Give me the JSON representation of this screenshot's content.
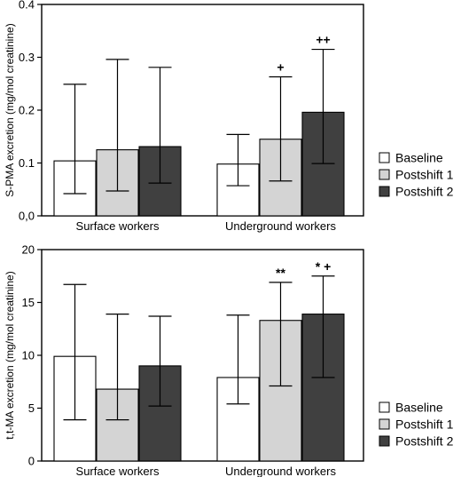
{
  "chart_data": [
    {
      "type": "bar",
      "ylabel": "S-PMA excretion (mg/mol creatinine)",
      "ylim": [
        0,
        0.4
      ],
      "yticks": [
        "0,0",
        "0.1",
        "0.2",
        "0.3",
        "0.4"
      ],
      "categories": [
        "Surface workers",
        "Underground workers"
      ],
      "series": [
        {
          "name": "Baseline",
          "values": [
            0.104,
            0.098
          ],
          "err_low": [
            0.042,
            0.057
          ],
          "err_high": [
            0.249,
            0.154
          ]
        },
        {
          "name": "Postshift 1",
          "values": [
            0.125,
            0.145
          ],
          "err_low": [
            0.047,
            0.066
          ],
          "err_high": [
            0.296,
            0.263
          ]
        },
        {
          "name": "Postshift 2",
          "values": [
            0.131,
            0.196
          ],
          "err_low": [
            0.062,
            0.099
          ],
          "err_high": [
            0.281,
            0.315
          ]
        }
      ],
      "annotations": [
        {
          "category": 1,
          "series": 1,
          "text": "+"
        },
        {
          "category": 1,
          "series": 2,
          "text": "++"
        }
      ],
      "legend_position": "right",
      "grid": false
    },
    {
      "type": "bar",
      "ylabel": "t,t-MA excretion (mg/mol creatinine)",
      "ylim": [
        0,
        20
      ],
      "yticks": [
        "0",
        "5",
        "10",
        "15",
        "20"
      ],
      "categories": [
        "Surface workers",
        "Underground workers"
      ],
      "series": [
        {
          "name": "Baseline",
          "values": [
            9.9,
            7.9
          ],
          "err_low": [
            3.9,
            5.4
          ],
          "err_high": [
            16.7,
            13.8
          ]
        },
        {
          "name": "Postshift 1",
          "values": [
            6.8,
            13.3
          ],
          "err_low": [
            3.9,
            7.1
          ],
          "err_high": [
            13.9,
            16.9
          ]
        },
        {
          "name": "Postshift 2",
          "values": [
            9.0,
            13.9
          ],
          "err_low": [
            5.2,
            7.9
          ],
          "err_high": [
            13.7,
            17.5
          ]
        }
      ],
      "annotations": [
        {
          "category": 1,
          "series": 1,
          "text": "**"
        },
        {
          "category": 1,
          "series": 2,
          "text": "* +"
        }
      ],
      "legend_position": "right",
      "grid": false
    }
  ],
  "colors": {
    "Baseline": "#ffffff",
    "Postshift 1": "#d4d4d4",
    "Postshift 2": "#404040"
  }
}
